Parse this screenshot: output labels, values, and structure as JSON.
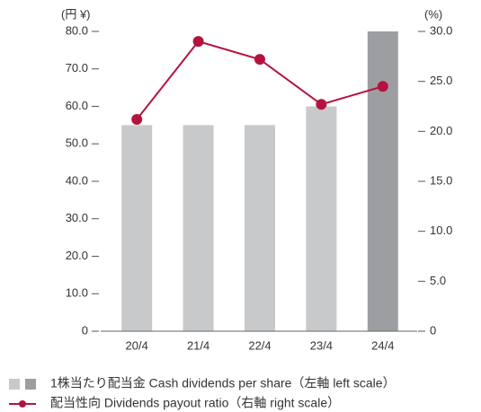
{
  "chart_data": {
    "type": "bar",
    "categories": [
      "20/4",
      "21/4",
      "22/4",
      "23/4",
      "24/4"
    ],
    "y_label": "(円 ¥)",
    "y2_label": "(%)",
    "ylim": [
      0,
      80
    ],
    "yticks": [
      0,
      {
        "value": 10,
        "label": "10.0"
      },
      {
        "value": 20,
        "label": "20.0"
      },
      {
        "value": 30,
        "label": "30.0"
      },
      {
        "value": 40,
        "label": "40.0"
      },
      {
        "value": 50,
        "label": "50.0"
      },
      {
        "value": 60,
        "label": "60.0"
      },
      {
        "value": 70,
        "label": "70.0"
      },
      {
        "value": 80,
        "label": "80.0"
      }
    ],
    "y2lim": [
      0,
      30
    ],
    "y2ticks": [
      0,
      {
        "value": 5,
        "label": "5.0"
      },
      {
        "value": 10,
        "label": "10.0"
      },
      {
        "value": 15,
        "label": "15.0"
      },
      {
        "value": 20,
        "label": "20.0"
      },
      {
        "value": 25,
        "label": "25.0"
      },
      {
        "value": 30,
        "label": "30.0"
      }
    ],
    "series": [
      {
        "name": "1株当たり配当金 Cash dividends per share（左軸 left scale）",
        "type": "bar",
        "colors": [
          "#c8c9cb",
          "#c8c9cb",
          "#c8c9cb",
          "#c8c9cb",
          "#9d9ea1"
        ],
        "values": [
          55,
          55,
          55,
          60,
          80
        ]
      },
      {
        "name": "配当性向 Dividends payout ratio（右軸 right scale）",
        "type": "line",
        "axis": "y2",
        "color": "#b5133f",
        "values": [
          21.2,
          29.0,
          27.2,
          22.7,
          24.5
        ]
      }
    ]
  }
}
